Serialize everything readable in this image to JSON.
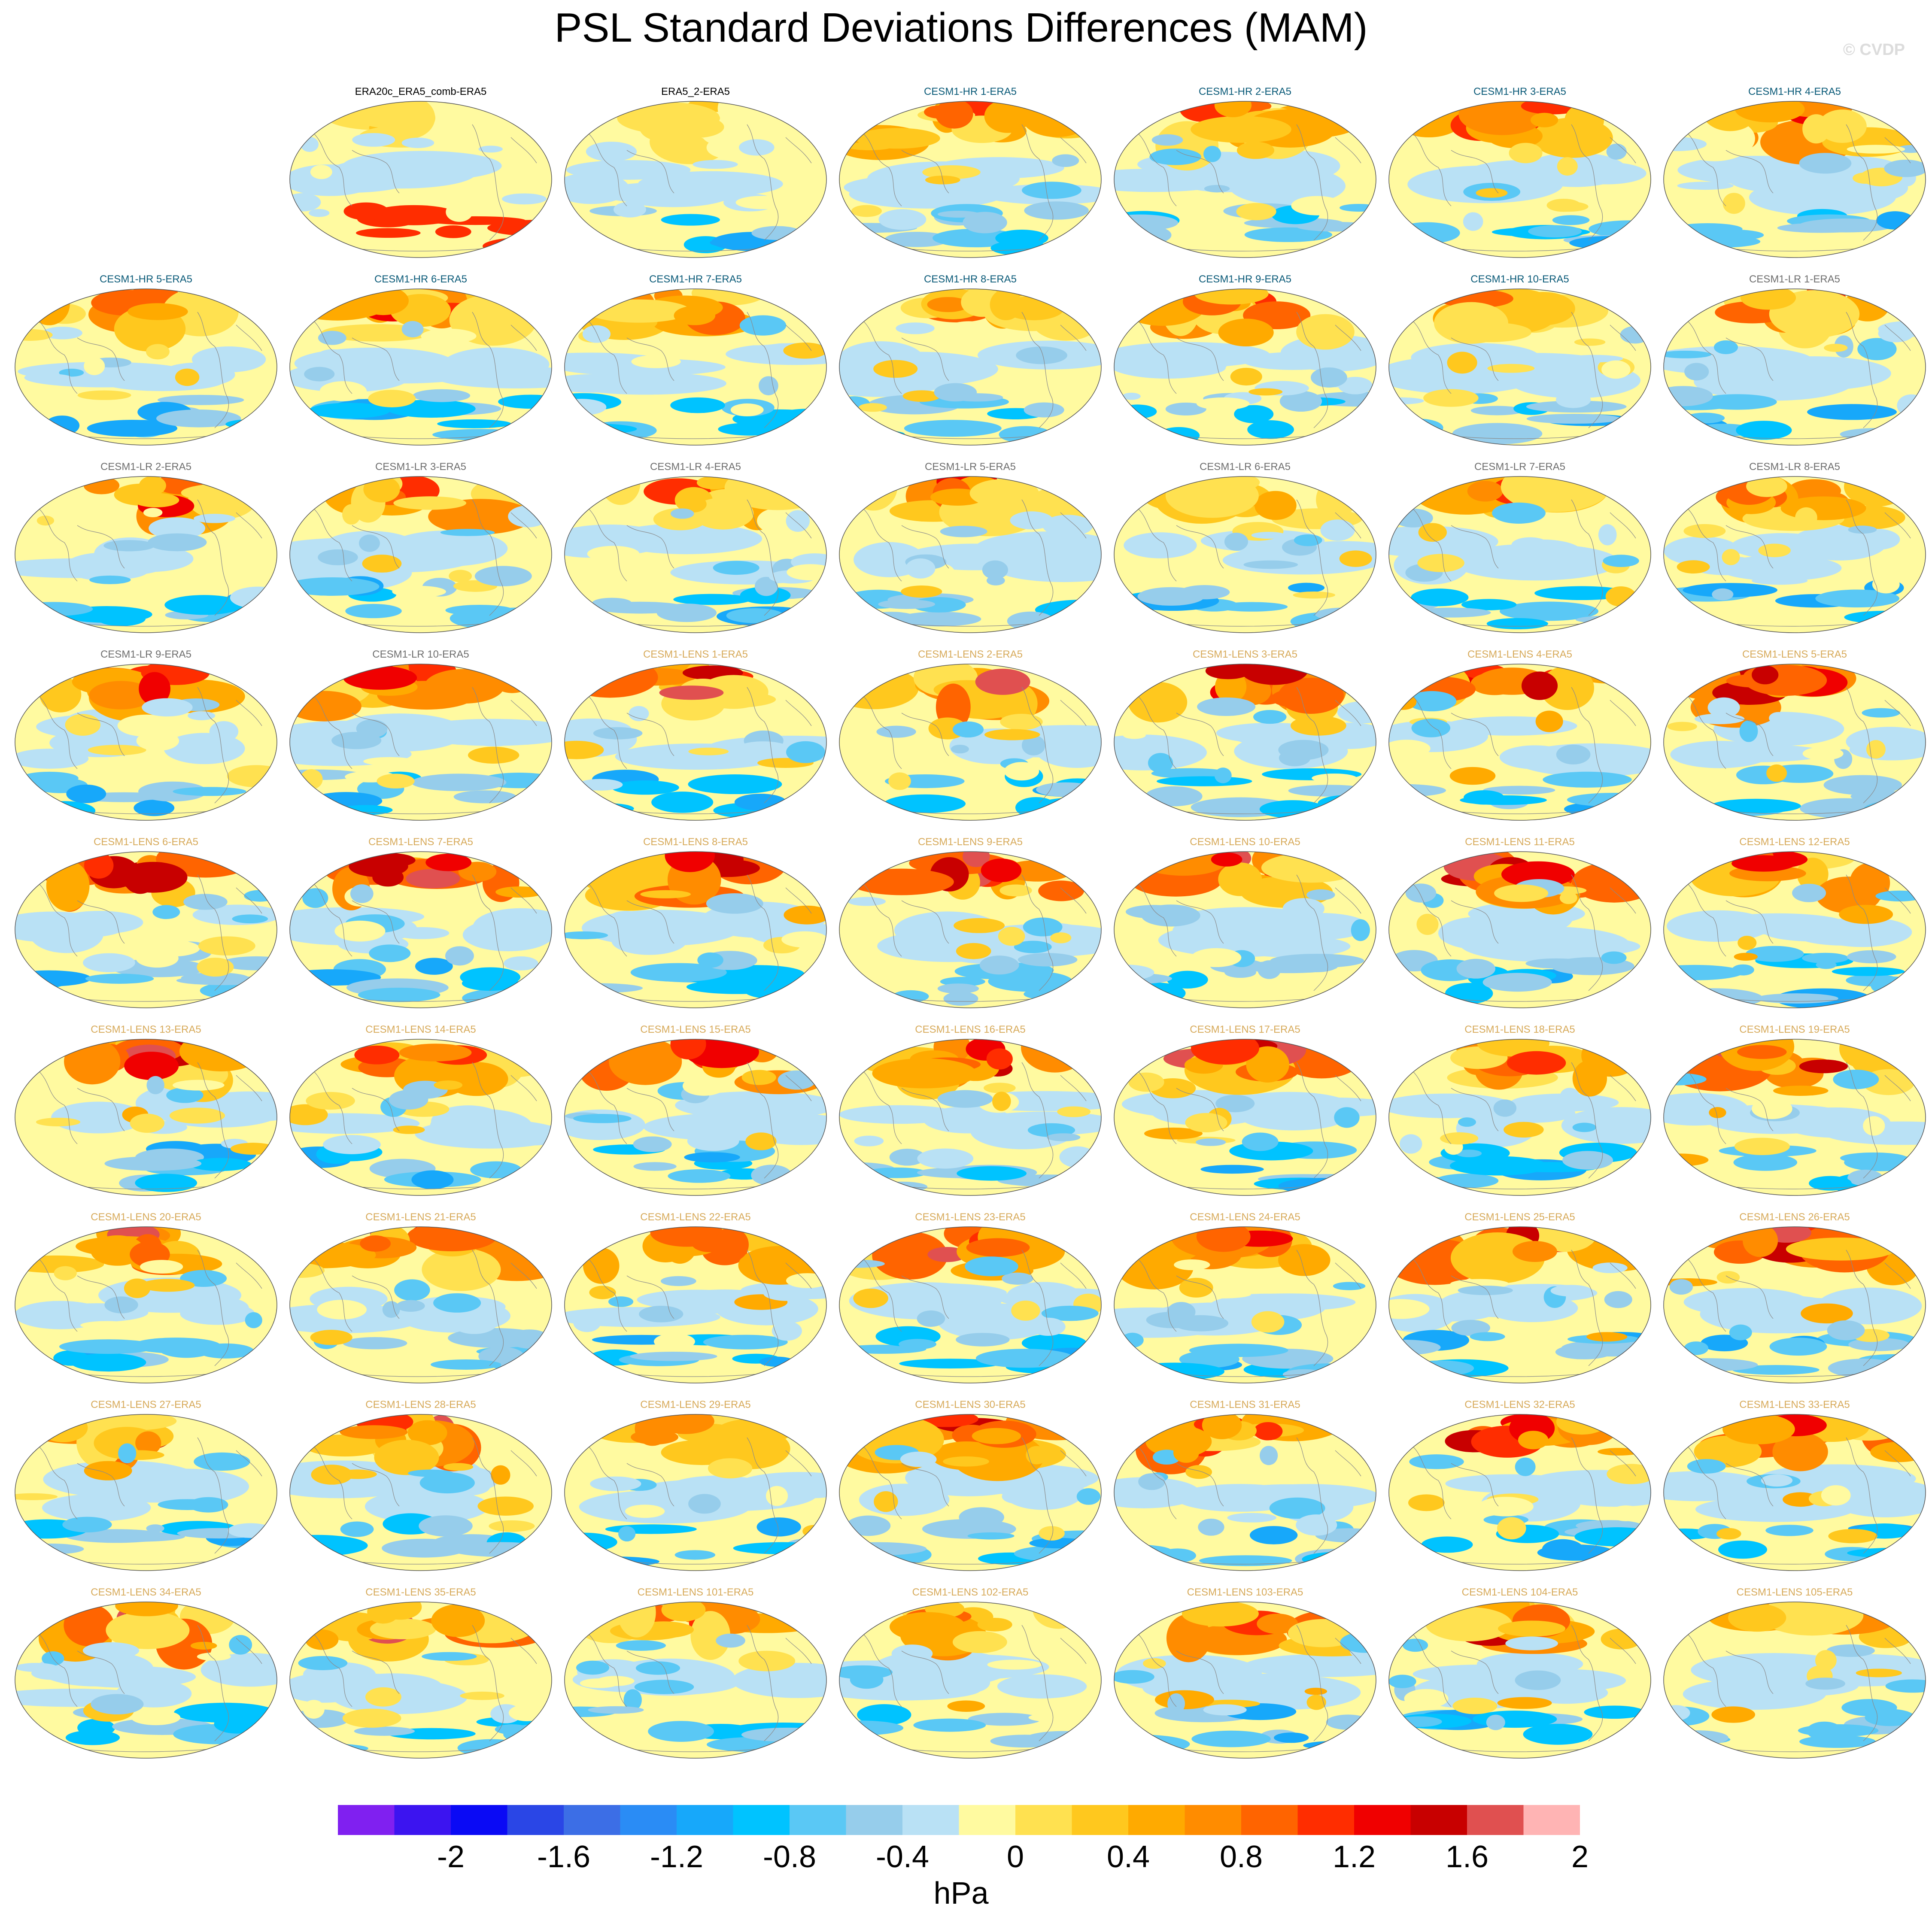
{
  "title": "PSL Standard Deviations Differences (MAM)",
  "watermark": "© CVDP",
  "chart_data": {
    "type": "map",
    "title": "PSL Standard Deviations Differences (MAM)",
    "projection": "global ellipse (Robinson-like)",
    "layout": "9 rows x 7 columns, first cell empty",
    "legend_placement": "bottom",
    "units": "hPa",
    "colorbar": {
      "levels": [
        -2.2,
        -2,
        -1.8,
        -1.6,
        -1.4,
        -1.2,
        -1,
        -0.8,
        -0.6,
        -0.4,
        -0.2,
        0,
        0.2,
        0.4,
        0.6,
        0.8,
        1,
        1.2,
        1.4,
        1.6,
        1.8,
        2,
        2.2
      ],
      "tick_labels": [
        "-2",
        "-1.6",
        "-1.2",
        "-0.8",
        "-0.4",
        "0",
        "0.4",
        "0.8",
        "1.2",
        "1.6",
        "2"
      ],
      "colors": [
        "#8020f0",
        "#3c14f0",
        "#0a0af5",
        "#2a46e6",
        "#3c6ee6",
        "#2a8cf5",
        "#17a8fa",
        "#00c3ff",
        "#5ac8f5",
        "#96cdeb",
        "#b9e1f5",
        "#fffaa0",
        "#ffe150",
        "#ffc81e",
        "#ffaa00",
        "#ff8c00",
        "#ff6400",
        "#ff2d00",
        "#f00000",
        "#c80000",
        "#e05050",
        "#ffb4b4"
      ]
    },
    "panel_groups": {
      "obs": "#000000",
      "CESM1-HR": "#0a5a78",
      "CESM1-LR": "#6e6e6e",
      "CESM1-LENS": "#d7aa5a"
    },
    "panels": [
      {
        "label": "ERA20c_ERA5_comb-ERA5",
        "group": "obs"
      },
      {
        "label": "ERA5_2-ERA5",
        "group": "obs"
      },
      {
        "label": "CESM1-HR 1-ERA5",
        "group": "CESM1-HR"
      },
      {
        "label": "CESM1-HR 2-ERA5",
        "group": "CESM1-HR"
      },
      {
        "label": "CESM1-HR 3-ERA5",
        "group": "CESM1-HR"
      },
      {
        "label": "CESM1-HR 4-ERA5",
        "group": "CESM1-HR"
      },
      {
        "label": "CESM1-HR 5-ERA5",
        "group": "CESM1-HR"
      },
      {
        "label": "CESM1-HR 6-ERA5",
        "group": "CESM1-HR"
      },
      {
        "label": "CESM1-HR 7-ERA5",
        "group": "CESM1-HR"
      },
      {
        "label": "CESM1-HR 8-ERA5",
        "group": "CESM1-HR"
      },
      {
        "label": "CESM1-HR 9-ERA5",
        "group": "CESM1-HR"
      },
      {
        "label": "CESM1-HR 10-ERA5",
        "group": "CESM1-HR"
      },
      {
        "label": "CESM1-LR 1-ERA5",
        "group": "CESM1-LR"
      },
      {
        "label": "CESM1-LR 2-ERA5",
        "group": "CESM1-LR"
      },
      {
        "label": "CESM1-LR 3-ERA5",
        "group": "CESM1-LR"
      },
      {
        "label": "CESM1-LR 4-ERA5",
        "group": "CESM1-LR"
      },
      {
        "label": "CESM1-LR 5-ERA5",
        "group": "CESM1-LR"
      },
      {
        "label": "CESM1-LR 6-ERA5",
        "group": "CESM1-LR"
      },
      {
        "label": "CESM1-LR 7-ERA5",
        "group": "CESM1-LR"
      },
      {
        "label": "CESM1-LR 8-ERA5",
        "group": "CESM1-LR"
      },
      {
        "label": "CESM1-LR 9-ERA5",
        "group": "CESM1-LR"
      },
      {
        "label": "CESM1-LR 10-ERA5",
        "group": "CESM1-LR"
      },
      {
        "label": "CESM1-LENS 1-ERA5",
        "group": "CESM1-LENS"
      },
      {
        "label": "CESM1-LENS 2-ERA5",
        "group": "CESM1-LENS"
      },
      {
        "label": "CESM1-LENS 3-ERA5",
        "group": "CESM1-LENS"
      },
      {
        "label": "CESM1-LENS 4-ERA5",
        "group": "CESM1-LENS"
      },
      {
        "label": "CESM1-LENS 5-ERA5",
        "group": "CESM1-LENS"
      },
      {
        "label": "CESM1-LENS 6-ERA5",
        "group": "CESM1-LENS"
      },
      {
        "label": "CESM1-LENS 7-ERA5",
        "group": "CESM1-LENS"
      },
      {
        "label": "CESM1-LENS 8-ERA5",
        "group": "CESM1-LENS"
      },
      {
        "label": "CESM1-LENS 9-ERA5",
        "group": "CESM1-LENS"
      },
      {
        "label": "CESM1-LENS 10-ERA5",
        "group": "CESM1-LENS"
      },
      {
        "label": "CESM1-LENS 11-ERA5",
        "group": "CESM1-LENS"
      },
      {
        "label": "CESM1-LENS 12-ERA5",
        "group": "CESM1-LENS"
      },
      {
        "label": "CESM1-LENS 13-ERA5",
        "group": "CESM1-LENS"
      },
      {
        "label": "CESM1-LENS 14-ERA5",
        "group": "CESM1-LENS"
      },
      {
        "label": "CESM1-LENS 15-ERA5",
        "group": "CESM1-LENS"
      },
      {
        "label": "CESM1-LENS 16-ERA5",
        "group": "CESM1-LENS"
      },
      {
        "label": "CESM1-LENS 17-ERA5",
        "group": "CESM1-LENS"
      },
      {
        "label": "CESM1-LENS 18-ERA5",
        "group": "CESM1-LENS"
      },
      {
        "label": "CESM1-LENS 19-ERA5",
        "group": "CESM1-LENS"
      },
      {
        "label": "CESM1-LENS 20-ERA5",
        "group": "CESM1-LENS"
      },
      {
        "label": "CESM1-LENS 21-ERA5",
        "group": "CESM1-LENS"
      },
      {
        "label": "CESM1-LENS 22-ERA5",
        "group": "CESM1-LENS"
      },
      {
        "label": "CESM1-LENS 23-ERA5",
        "group": "CESM1-LENS"
      },
      {
        "label": "CESM1-LENS 24-ERA5",
        "group": "CESM1-LENS"
      },
      {
        "label": "CESM1-LENS 25-ERA5",
        "group": "CESM1-LENS"
      },
      {
        "label": "CESM1-LENS 26-ERA5",
        "group": "CESM1-LENS"
      },
      {
        "label": "CESM1-LENS 27-ERA5",
        "group": "CESM1-LENS"
      },
      {
        "label": "CESM1-LENS 28-ERA5",
        "group": "CESM1-LENS"
      },
      {
        "label": "CESM1-LENS 29-ERA5",
        "group": "CESM1-LENS"
      },
      {
        "label": "CESM1-LENS 30-ERA5",
        "group": "CESM1-LENS"
      },
      {
        "label": "CESM1-LENS 31-ERA5",
        "group": "CESM1-LENS"
      },
      {
        "label": "CESM1-LENS 32-ERA5",
        "group": "CESM1-LENS"
      },
      {
        "label": "CESM1-LENS 33-ERA5",
        "group": "CESM1-LENS"
      },
      {
        "label": "CESM1-LENS 34-ERA5",
        "group": "CESM1-LENS"
      },
      {
        "label": "CESM1-LENS 35-ERA5",
        "group": "CESM1-LENS"
      },
      {
        "label": "CESM1-LENS 101-ERA5",
        "group": "CESM1-LENS"
      },
      {
        "label": "CESM1-LENS 102-ERA5",
        "group": "CESM1-LENS"
      },
      {
        "label": "CESM1-LENS 103-ERA5",
        "group": "CESM1-LENS"
      },
      {
        "label": "CESM1-LENS 104-ERA5",
        "group": "CESM1-LENS"
      },
      {
        "label": "CESM1-LENS 105-ERA5",
        "group": "CESM1-LENS"
      }
    ]
  }
}
